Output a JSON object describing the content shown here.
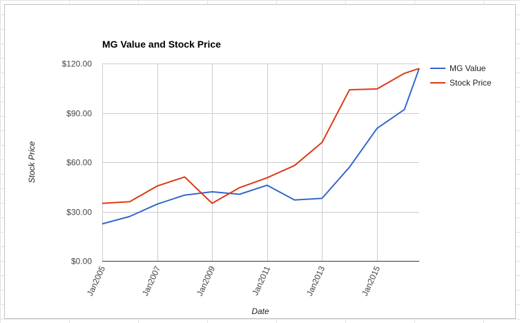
{
  "colors": {
    "mg_value": "#3366cc",
    "stock_price": "#dc3912",
    "grid": "#cccccc",
    "axis": "#333333"
  },
  "chart_data": {
    "type": "line",
    "title": "MG Value and Stock Price",
    "xlabel": "Date",
    "ylabel": "Stock Price",
    "x_ticks": [
      "Jan2005",
      "Jan2007",
      "Jan2009",
      "Jan2011",
      "Jan2013",
      "Jan2015"
    ],
    "y_ticks": [
      "$0.00",
      "$30.00",
      "$60.00",
      "$90.00",
      "$120.00"
    ],
    "y_tick_values": [
      0,
      30,
      60,
      90,
      120
    ],
    "ylim": [
      0,
      120
    ],
    "xlim": [
      "2005-01-01",
      "2016-07-15"
    ],
    "x": [
      "2005-01-01",
      "2006-01-01",
      "2007-01-01",
      "2008-01-01",
      "2009-01-01",
      "2010-01-01",
      "2011-01-01",
      "2012-01-01",
      "2013-01-01",
      "2014-01-01",
      "2015-01-01",
      "2016-01-01",
      "2016-07-15"
    ],
    "series": [
      {
        "name": "MG Value",
        "color": "#3366cc",
        "values": [
          22.5,
          27,
          34.5,
          40,
          42,
          40.5,
          46,
          37,
          38,
          57,
          80.5,
          92,
          117
        ]
      },
      {
        "name": "Stock Price",
        "color": "#dc3912",
        "values": [
          35,
          36,
          45.5,
          51,
          35,
          44.5,
          50.5,
          58,
          72,
          104,
          104.5,
          114,
          117
        ]
      }
    ],
    "legend_position": "right",
    "grid": true
  }
}
